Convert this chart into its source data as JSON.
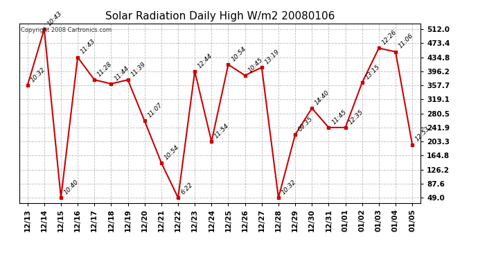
{
  "title": "Solar Radiation Daily High W/m2 20080106",
  "copyright": "Copyright 2008 Cartronics.com",
  "dates": [
    "12/13",
    "12/14",
    "12/15",
    "12/16",
    "12/17",
    "12/18",
    "12/19",
    "12/20",
    "12/21",
    "12/22",
    "12/23",
    "12/24",
    "12/25",
    "12/26",
    "12/27",
    "12/28",
    "12/29",
    "12/30",
    "12/31",
    "01/01",
    "01/02",
    "01/03",
    "01/04",
    "01/05"
  ],
  "values": [
    357.7,
    512.0,
    49.0,
    434.8,
    373.0,
    362.0,
    373.0,
    260.0,
    145.0,
    49.0,
    396.2,
    203.3,
    415.0,
    385.0,
    407.0,
    49.0,
    222.0,
    295.0,
    241.9,
    241.9,
    365.0,
    460.0,
    450.0,
    195.0
  ],
  "labels": [
    "10:32",
    "10:43",
    "10:40",
    "11:43",
    "11:28",
    "11:44",
    "11:39",
    "11:07",
    "10:54",
    "6:22",
    "12:44",
    "11:54",
    "10:54",
    "10:45",
    "13:19",
    "10:32",
    "09:35",
    "14:40",
    "11:45",
    "12:35",
    "13:15",
    "12:26",
    "11:06",
    "12:53"
  ],
  "line_color": "#cc0000",
  "marker_color": "#cc0000",
  "bg_color": "#ffffff",
  "grid_color": "#bbbbbb",
  "text_color": "#000000",
  "label_color": "#000000",
  "yticks": [
    49.0,
    87.6,
    126.2,
    164.8,
    203.3,
    241.9,
    280.5,
    319.1,
    357.7,
    396.2,
    434.8,
    473.4,
    512.0
  ],
  "ylim": [
    35,
    528
  ]
}
